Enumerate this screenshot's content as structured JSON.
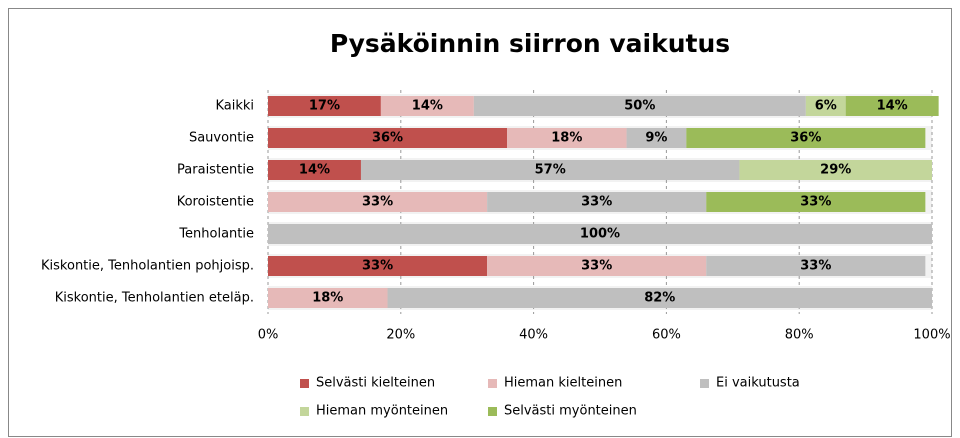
{
  "chart_data": {
    "type": "stacked-bar-horizontal",
    "title": "Pysäköinnin siirron vaikutus",
    "categories": [
      "Kaikki",
      "Sauvontie",
      "Paraistentie",
      "Koroistentie",
      "Tenholantie",
      "Kiskontie, Tenholantien pohjoisp.",
      "Kiskontie, Tenholantien eteläp."
    ],
    "series": [
      {
        "name": "Selvästi kielteinen",
        "color": "#c0504d",
        "values": [
          17,
          36,
          14,
          null,
          null,
          33,
          null
        ],
        "value_labels": [
          "17%",
          "36%",
          "14%",
          null,
          null,
          "33%",
          null
        ]
      },
      {
        "name": "Hieman kielteinen",
        "color": "#e6b9b8",
        "values": [
          14,
          18,
          null,
          33,
          null,
          33,
          18
        ],
        "value_labels": [
          "14%",
          "18%",
          null,
          "33%",
          null,
          "33%",
          "18%"
        ]
      },
      {
        "name": "Ei vaikutusta",
        "color": "#bfbfbf",
        "values": [
          50,
          9,
          57,
          33,
          100,
          33,
          82
        ],
        "value_labels": [
          "50%",
          "9%",
          "57%",
          "33%",
          "100%",
          "33%",
          "82%"
        ]
      },
      {
        "name": "Hieman myönteinen",
        "color": "#c3d69b",
        "values": [
          6,
          null,
          29,
          null,
          null,
          null,
          null
        ],
        "value_labels": [
          "6%",
          null,
          "29%",
          null,
          null,
          null,
          null
        ]
      },
      {
        "name": "Selvästi myönteinen",
        "color": "#9bbb59",
        "values": [
          14,
          36,
          null,
          33,
          null,
          null,
          null
        ],
        "value_labels": [
          "14%",
          "36%",
          null,
          "33%",
          null,
          null,
          null
        ]
      }
    ],
    "xlim": [
      0,
      100
    ],
    "xticks": [
      {
        "value": 0,
        "label": "0%"
      },
      {
        "value": 20,
        "label": "20%"
      },
      {
        "value": 40,
        "label": "40%"
      },
      {
        "value": 60,
        "label": "60%"
      },
      {
        "value": 80,
        "label": "80%"
      },
      {
        "value": 100,
        "label": "100%"
      }
    ],
    "grid": true,
    "legend": "bottom"
  }
}
